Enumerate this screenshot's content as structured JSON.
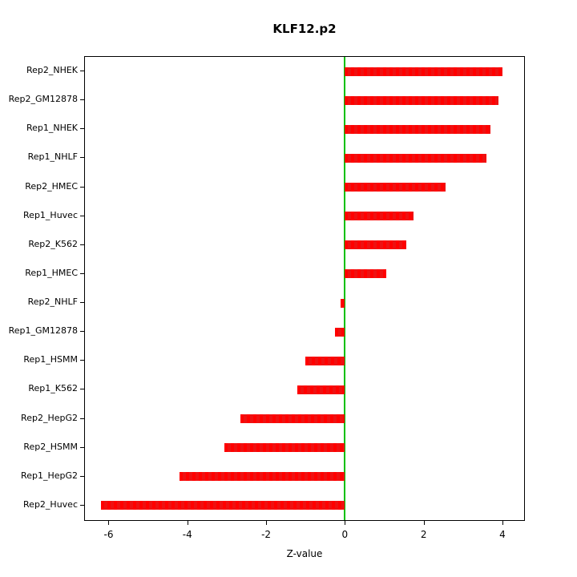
{
  "chart_data": {
    "type": "bar",
    "orientation": "horizontal",
    "title": "KLF12.p2",
    "xlabel": "Z-value",
    "categories": [
      "Rep2_NHEK",
      "Rep2_GM12878",
      "Rep1_NHEK",
      "Rep1_NHLF",
      "Rep2_HMEC",
      "Rep1_Huvec",
      "Rep2_K562",
      "Rep1_HMEC",
      "Rep2_NHLF",
      "Rep1_GM12878",
      "Rep1_HSMM",
      "Rep1_K562",
      "Rep2_HepG2",
      "Rep2_HSMM",
      "Rep1_HepG2",
      "Rep2_Huvec"
    ],
    "values": [
      4.0,
      3.9,
      3.7,
      3.6,
      2.55,
      1.75,
      1.55,
      1.05,
      -0.1,
      -0.25,
      -1.0,
      -1.2,
      -2.65,
      -3.05,
      -4.2,
      -6.2
    ],
    "xlim": [
      -6.6,
      4.55
    ],
    "xticks": [
      -6,
      -4,
      -2,
      0,
      2,
      4
    ],
    "bar_color": "#ff0000",
    "zero_line_color": "#00c000",
    "axis_color": "#000000",
    "background_color": "#ffffff",
    "grid": false,
    "legend_position": "none"
  }
}
